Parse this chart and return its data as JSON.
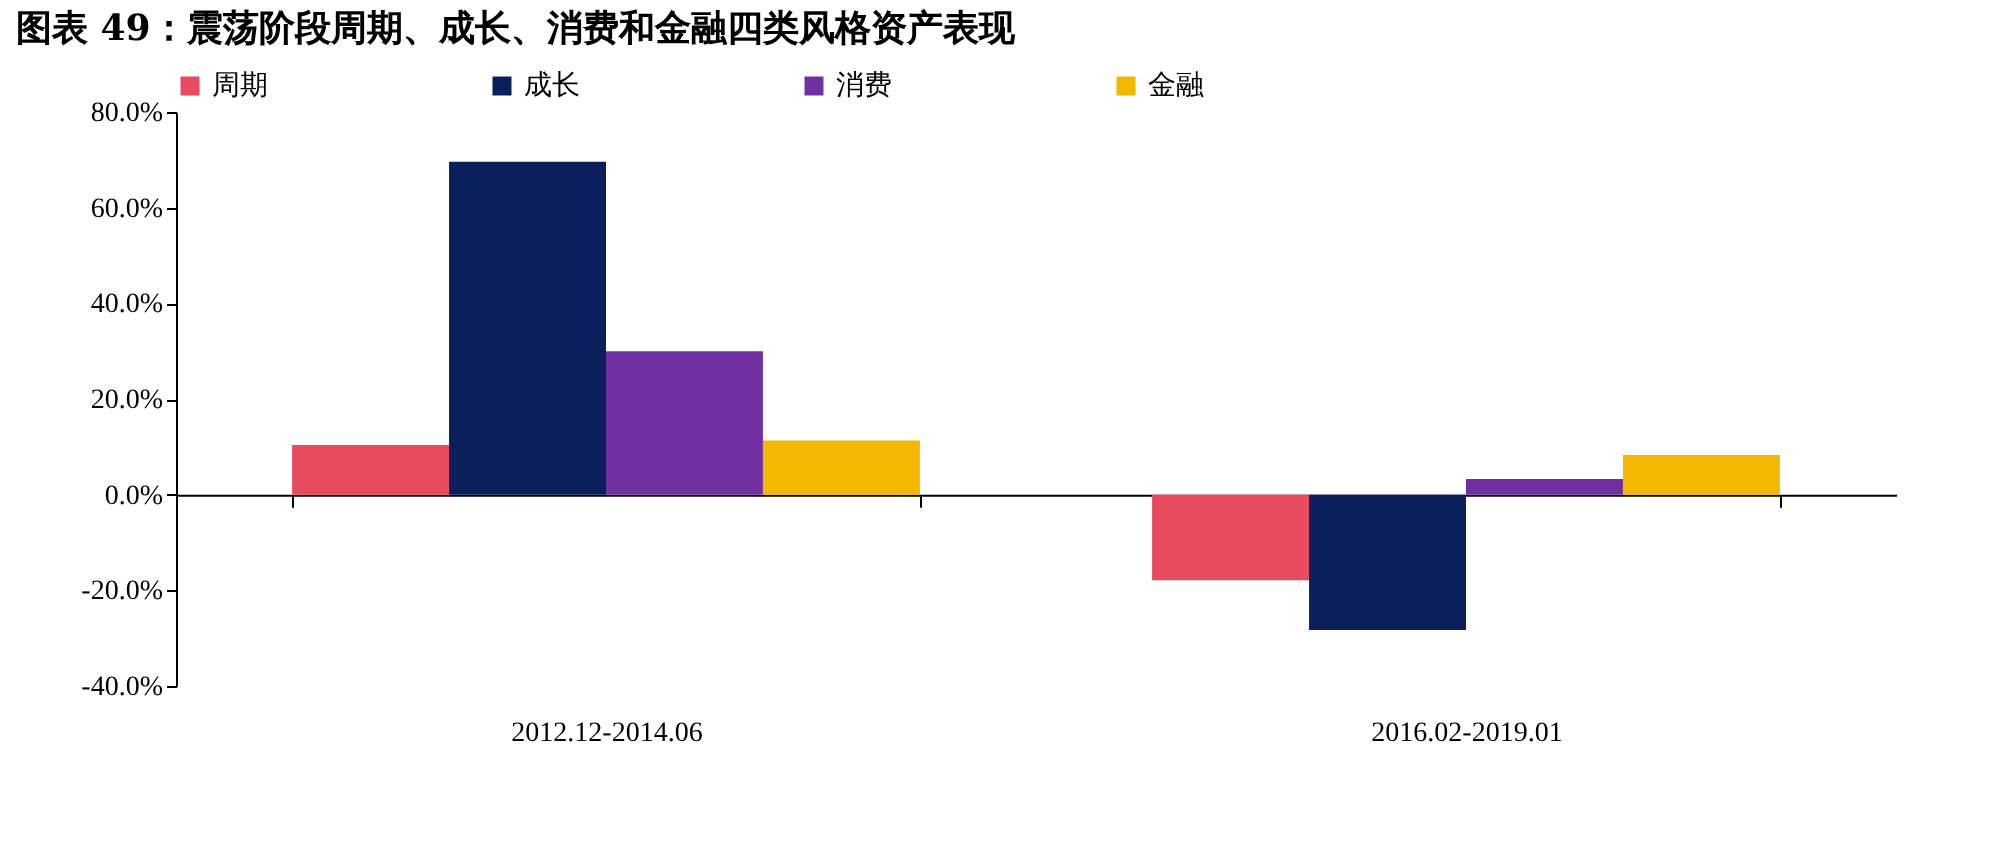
{
  "chart_data": {
    "type": "bar",
    "title": "图表 49：震荡阶段周期、成长、消费和金融四类风格资产表现",
    "categories": [
      "2012.12-2014.06",
      "2016.02-2019.01"
    ],
    "series": [
      {
        "name": "周期",
        "color": "#e84a5f",
        "values": [
          10.4,
          -17.9
        ]
      },
      {
        "name": "成长",
        "color": "#0b1f5c",
        "values": [
          69.6,
          -28.3
        ]
      },
      {
        "name": "消费",
        "color": "#7030a0",
        "values": [
          30.0,
          3.3
        ]
      },
      {
        "name": "金融",
        "color": "#f2b800",
        "values": [
          11.3,
          8.3
        ]
      }
    ],
    "ylim": [
      -40,
      80
    ],
    "yticks": [
      {
        "value": -40,
        "label": "-40.0%"
      },
      {
        "value": -20,
        "label": "-20.0%"
      },
      {
        "value": 0,
        "label": "0.0%"
      },
      {
        "value": 20,
        "label": "20.0%"
      },
      {
        "value": 40,
        "label": "40.0%"
      },
      {
        "value": 60,
        "label": "60.0%"
      },
      {
        "value": 80,
        "label": "80.0%"
      }
    ],
    "legend": "top"
  }
}
